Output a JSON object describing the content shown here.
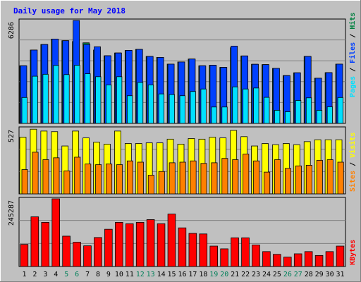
{
  "chart_data": {
    "type": "bar",
    "title": "Daily usage for May 2018",
    "categories": [
      "1",
      "2",
      "3",
      "4",
      "5",
      "6",
      "7",
      "8",
      "9",
      "10",
      "11",
      "12",
      "13",
      "14",
      "15",
      "16",
      "17",
      "18",
      "19",
      "20",
      "21",
      "22",
      "23",
      "24",
      "25",
      "26",
      "27",
      "28",
      "29",
      "30",
      "31"
    ],
    "weekend_days": [
      "5",
      "6",
      "12",
      "13",
      "19",
      "20",
      "26",
      "27"
    ],
    "panels": [
      {
        "id": "hits",
        "ymax_label": "6286",
        "ymax": 6286,
        "series": [
          {
            "name": "Hits",
            "color": "#008040",
            "values": [
              3520,
              4480,
              4820,
              5150,
              5050,
              5000,
              4920,
              4480,
              4130,
              4300,
              4460,
              4520,
              4090,
              4030,
              3620,
              3750,
              3930,
              3520,
              3550,
              3420,
              4620,
              4120,
              3610,
              3590,
              3360,
              2920,
              3090,
              4090,
              2760,
              3100,
              3620
            ]
          },
          {
            "name": "Files",
            "color": "#0040ff",
            "values": [
              3520,
              4480,
              4820,
              5150,
              5050,
              6286,
              4820,
              4680,
              4130,
              4300,
              4460,
              4520,
              4090,
              4030,
              3620,
              3750,
              3930,
              3520,
              3550,
              3420,
              4720,
              4120,
              3610,
              3590,
              3360,
              2920,
              3090,
              4090,
              2760,
              3100,
              3620
            ]
          },
          {
            "name": "Pages",
            "color": "#00e0ff",
            "values": [
              1580,
              2880,
              3000,
              3540,
              2980,
              3550,
              3030,
              2850,
              2350,
              2850,
              1690,
              2500,
              2350,
              1800,
              1760,
              1690,
              1950,
              2100,
              1000,
              1000,
              2230,
              2100,
              2160,
              1590,
              800,
              710,
              1400,
              1560,
              800,
              1010,
              1580
            ]
          }
        ]
      },
      {
        "id": "visits",
        "ymax_label": "527",
        "ymax": 527,
        "series": [
          {
            "name": "Visits",
            "color": "#ffff00",
            "values": [
              455,
              520,
              505,
              500,
              385,
              505,
              450,
              415,
              400,
              505,
              405,
              405,
              410,
              410,
              440,
              400,
              445,
              440,
              455,
              450,
              510,
              460,
              385,
              405,
              395,
              405,
              395,
              420,
              435,
              435,
              435
            ]
          },
          {
            "name": "Sites",
            "color": "#ff8000",
            "values": [
              195,
              335,
              275,
              290,
              185,
              295,
              240,
              235,
              240,
              235,
              265,
              255,
              150,
              180,
              250,
              255,
              265,
              245,
              250,
              285,
              275,
              320,
              265,
              175,
              275,
              205,
              225,
              230,
              270,
              275,
              255
            ]
          }
        ]
      },
      {
        "id": "kbytes",
        "ymax_label": "245287",
        "ymax": 245287,
        "series": [
          {
            "name": "KBytes",
            "color": "#ff0000",
            "values": [
              80000,
              180000,
              160000,
              245287,
              110000,
              88000,
              75000,
              105000,
              135000,
              160000,
              155000,
              160000,
              170000,
              155000,
              190000,
              140000,
              120000,
              118000,
              74000,
              64000,
              104000,
              104000,
              78000,
              54000,
              44000,
              34000,
              46000,
              54000,
              40000,
              54000,
              74000
            ]
          }
        ]
      }
    ],
    "axis_labels_right": {
      "pages": "Pages",
      "files": "Files",
      "hits": "Hits",
      "sites": "Sites",
      "visits": "Visits",
      "kbytes": "KBytes",
      "sep": " / "
    }
  },
  "colors": {
    "background": "#c0c0c0",
    "plot_bg": "#c0c0c0",
    "title": "#0000ff",
    "weekday_tick": "#000000",
    "weekend_tick": "#00805a"
  }
}
